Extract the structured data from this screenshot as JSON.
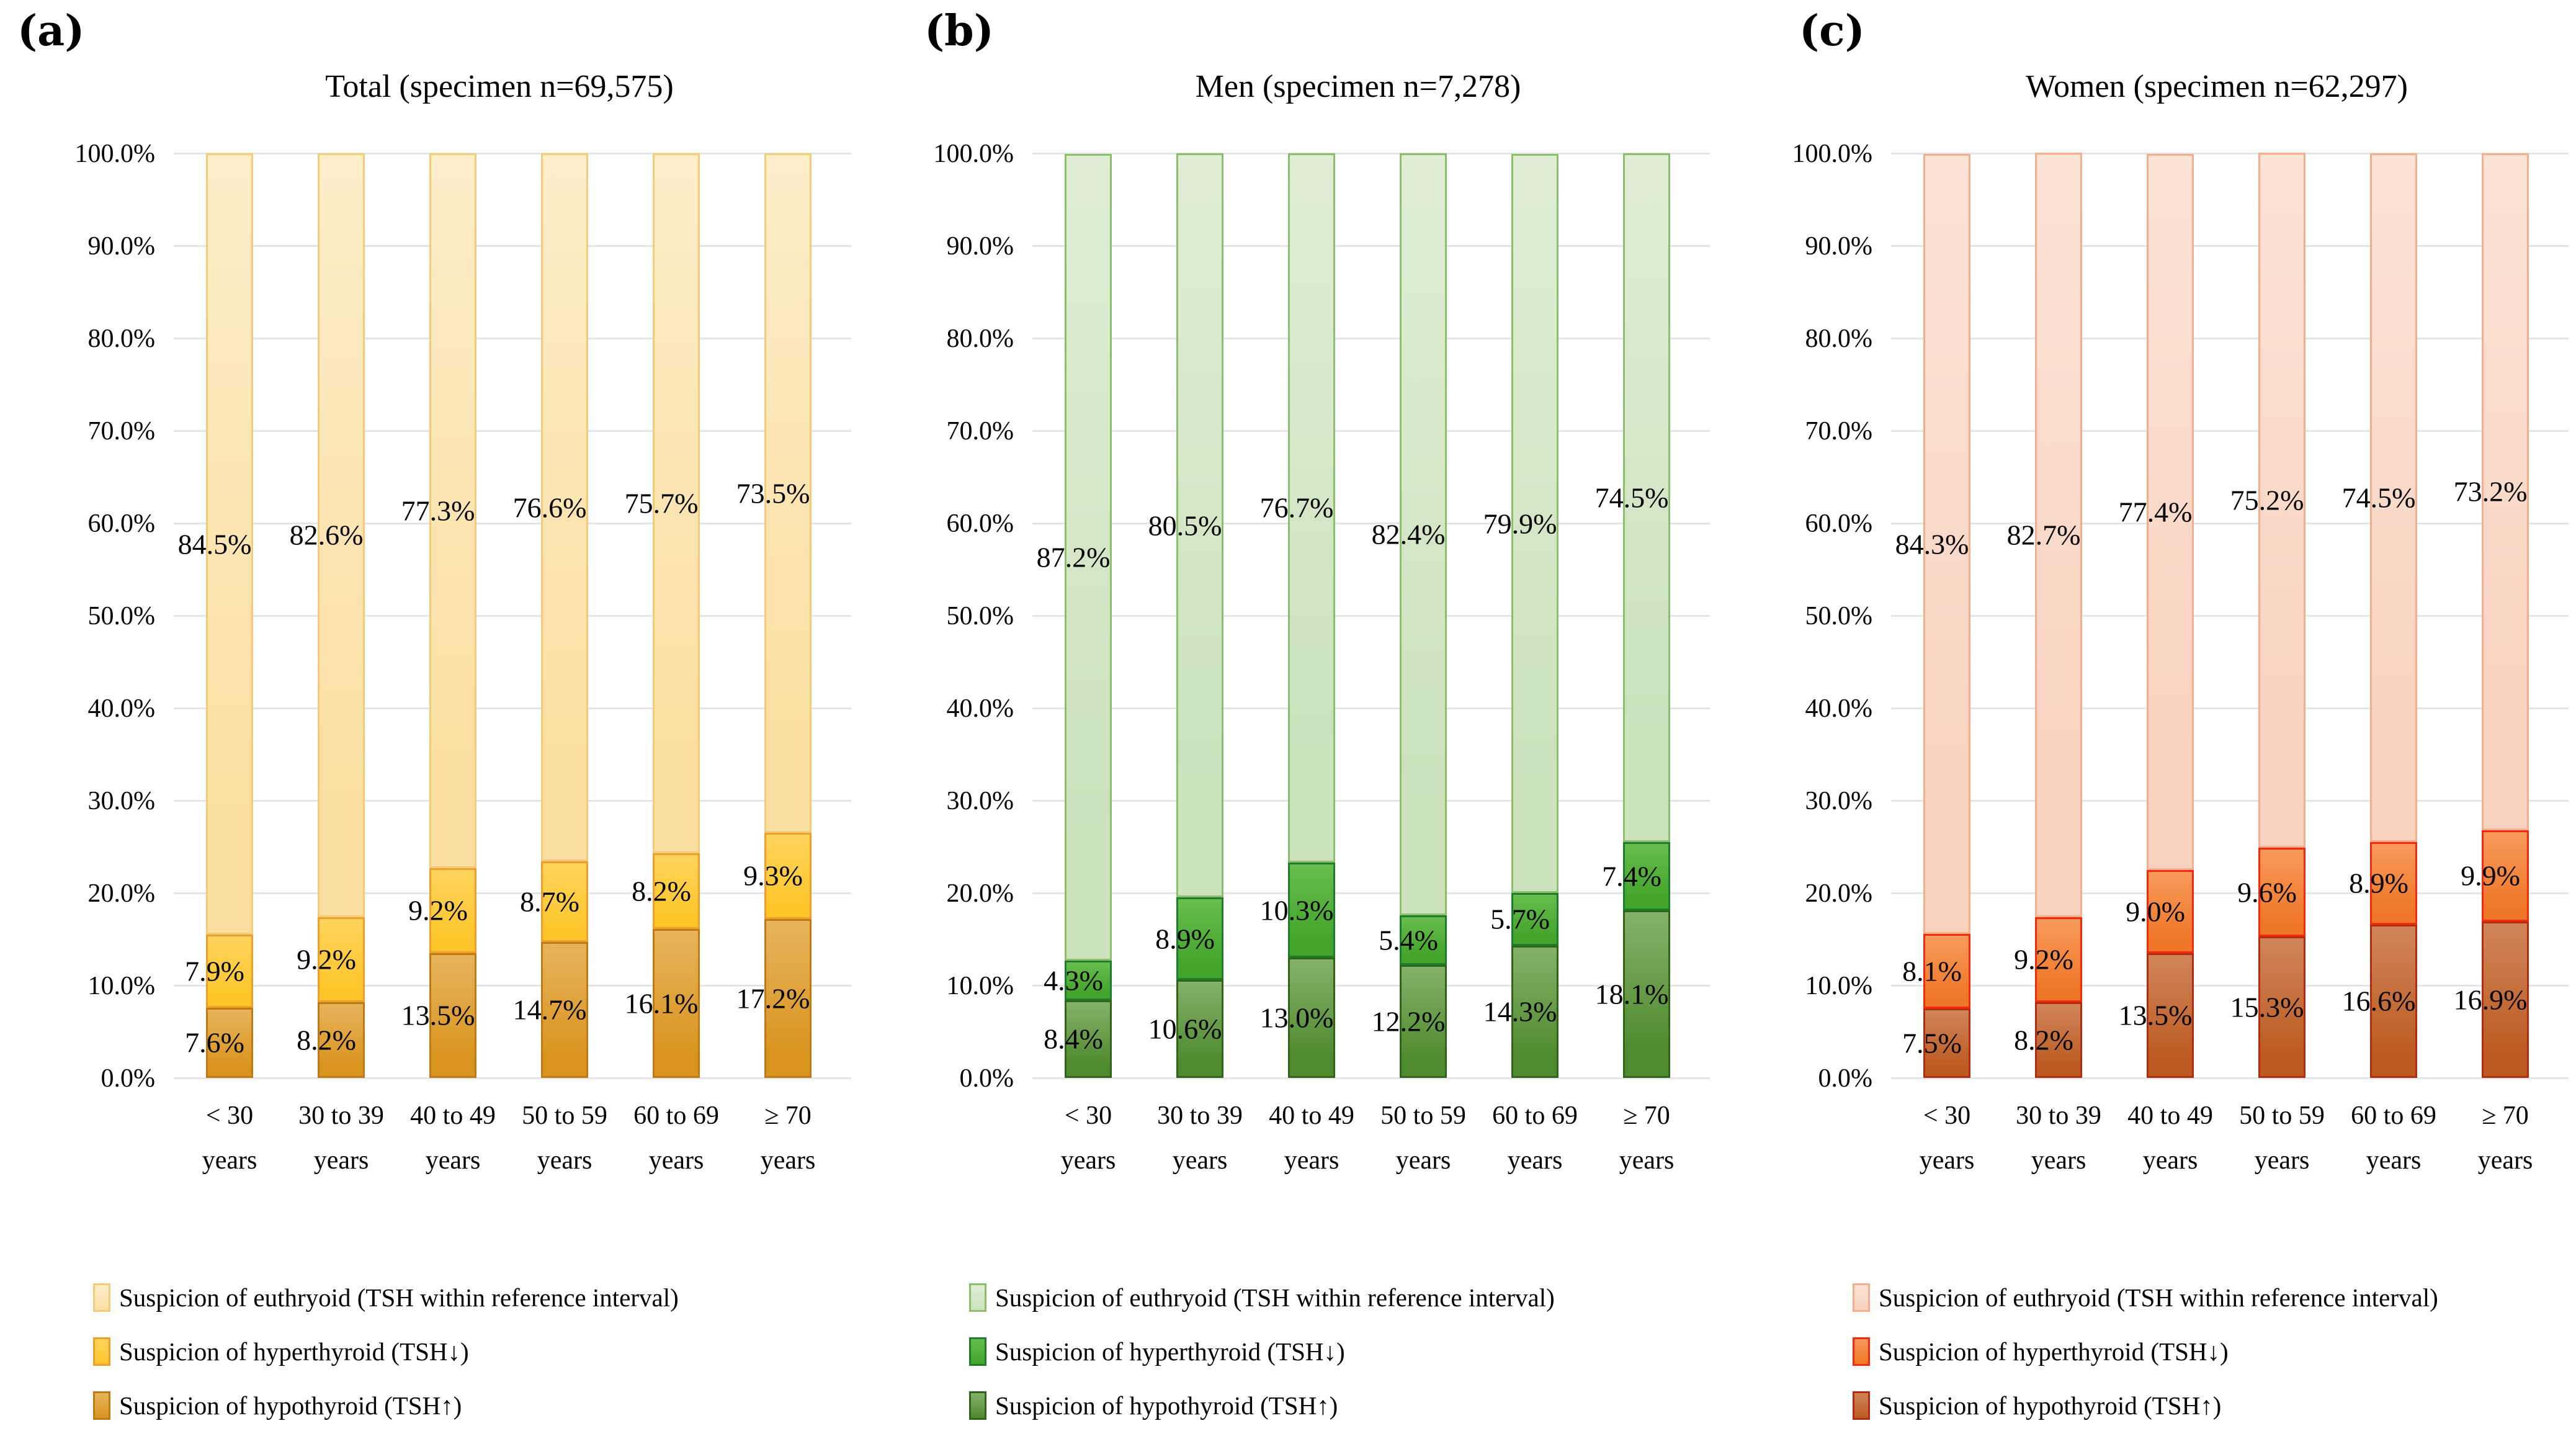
{
  "figure": {
    "background": "#FFFFFF"
  },
  "y_axis": {
    "ticks": [
      "100.0%",
      "90.0%",
      "80.0%",
      "70.0%",
      "60.0%",
      "50.0%",
      "40.0%",
      "30.0%",
      "20.0%",
      "10.0%",
      "0.0%"
    ]
  },
  "categories": [
    {
      "line1": "< 30",
      "line2": "years"
    },
    {
      "line1": "30 to 39",
      "line2": "years"
    },
    {
      "line1": "40 to 49",
      "line2": "years"
    },
    {
      "line1": "50 to 59",
      "line2": "years"
    },
    {
      "line1": "60 to 69",
      "line2": "years"
    },
    {
      "line1": "≥ 70",
      "line2": "years"
    }
  ],
  "legend": {
    "labels": [
      "Suspicion of euthryoid (TSH within reference interval)",
      "Suspicion of hyperthyroid (TSH↓)",
      "Suspicion of hypothyroid (TSH↑)"
    ]
  },
  "chart_data": [
    {
      "type": "bar",
      "variant": "100%-stacked-column",
      "panel_letter": "(a)",
      "title": "Total (specimen n=69,575)",
      "categories": [
        "< 30 years",
        "30 to 39 years",
        "40 to 49 years",
        "50 to 59 years",
        "60 to 69 years",
        "≥ 70 years"
      ],
      "series": [
        {
          "name": "Suspicion of euthryoid (TSH within reference interval)",
          "values": [
            84.5,
            82.6,
            77.3,
            76.6,
            75.7,
            73.5
          ]
        },
        {
          "name": "Suspicion of hyperthyroid (TSH↓)",
          "values": [
            7.9,
            9.2,
            9.2,
            8.7,
            8.2,
            9.3
          ]
        },
        {
          "name": "Suspicion of hypothyroid (TSH↑)",
          "values": [
            7.6,
            8.2,
            13.5,
            14.7,
            16.1,
            17.2
          ]
        }
      ],
      "labels": {
        "euthyroid": [
          "84.5%",
          "82.6%",
          "77.3%",
          "76.6%",
          "75.7%",
          "73.5%"
        ],
        "hyperthyroid": [
          "7.9%",
          "9.2%",
          "9.2%",
          "8.7%",
          "8.2%",
          "9.3%"
        ],
        "hypothyroid": [
          "7.6%",
          "8.2%",
          "13.5%",
          "14.7%",
          "16.1%",
          "17.2%"
        ]
      },
      "ylim": [
        0,
        100
      ],
      "grid": true,
      "legend_position": "bottom-left",
      "colors": {
        "euthyroid": {
          "fill_top": "#FDEDC9",
          "fill": "#FBDFA2",
          "border": "#F3CB79"
        },
        "hyperthyroid": {
          "fill_top": "#FFD45C",
          "fill": "#FEC62B",
          "border": "#EE9E2C"
        },
        "hypothyroid": {
          "fill_top": "#E7B45C",
          "fill": "#D9941F",
          "border": "#BF7B13"
        }
      }
    },
    {
      "type": "bar",
      "variant": "100%-stacked-column",
      "panel_letter": "(b)",
      "title": "Men (specimen n=7,278)",
      "categories": [
        "< 30 years",
        "30 to 39 years",
        "40 to 49 years",
        "50 to 59 years",
        "60 to 69 years",
        "≥ 70 years"
      ],
      "series": [
        {
          "name": "Suspicion of euthryoid (TSH within reference interval)",
          "values": [
            87.2,
            80.5,
            76.7,
            82.4,
            79.9,
            74.5
          ]
        },
        {
          "name": "Suspicion of hyperthyroid (TSH↓)",
          "values": [
            4.3,
            8.9,
            10.3,
            5.4,
            5.7,
            7.4
          ]
        },
        {
          "name": "Suspicion of hypothyroid (TSH↑)",
          "values": [
            8.4,
            10.6,
            13.0,
            12.2,
            14.3,
            18.1
          ]
        }
      ],
      "labels": {
        "euthyroid": [
          "87.2%",
          "80.5%",
          "76.7%",
          "82.4%",
          "79.9%",
          "74.5%"
        ],
        "hyperthyroid": [
          "4.3%",
          "8.9%",
          "10.3%",
          "5.4%",
          "5.7%",
          "7.4%"
        ],
        "hypothyroid": [
          "8.4%",
          "10.6%",
          "13.0%",
          "12.2%",
          "14.3%",
          "18.1%"
        ]
      },
      "ylim": [
        0,
        100
      ],
      "grid": true,
      "legend_position": "bottom-left",
      "colors": {
        "euthyroid": {
          "fill_top": "#DEEDD3",
          "fill": "#CCE2BD",
          "border": "#8CBF6C"
        },
        "hyperthyroid": {
          "fill_top": "#67BD4D",
          "fill": "#42A42A",
          "border": "#1E7D2C"
        },
        "hypothyroid": {
          "fill_top": "#85B169",
          "fill": "#4E8A2E",
          "border": "#2F6419"
        }
      }
    },
    {
      "type": "bar",
      "variant": "100%-stacked-column",
      "panel_letter": "(c)",
      "title": "Women (specimen n=62,297)",
      "categories": [
        "< 30 years",
        "30 to 39 years",
        "40 to 49 years",
        "50 to 59 years",
        "60 to 69 years",
        "≥ 70 years"
      ],
      "series": [
        {
          "name": "Suspicion of euthryoid (TSH within reference interval)",
          "values": [
            84.3,
            82.7,
            77.4,
            75.2,
            74.5,
            73.2
          ]
        },
        {
          "name": "Suspicion of hyperthyroid (TSH↓)",
          "values": [
            8.1,
            9.2,
            9.0,
            9.6,
            8.9,
            9.9
          ]
        },
        {
          "name": "Suspicion of hypothyroid (TSH↑)",
          "values": [
            7.5,
            8.2,
            13.5,
            15.3,
            16.6,
            16.9
          ]
        }
      ],
      "labels": {
        "euthyroid": [
          "84.3%",
          "82.7%",
          "77.4%",
          "75.2%",
          "74.5%",
          "73.2%"
        ],
        "hyperthyroid": [
          "8.1%",
          "9.2%",
          "9.0%",
          "9.6%",
          "8.9%",
          "9.9%"
        ],
        "hypothyroid": [
          "7.5%",
          "8.2%",
          "13.5%",
          "15.3%",
          "16.6%",
          "16.9%"
        ]
      },
      "ylim": [
        0,
        100
      ],
      "grid": true,
      "legend_position": "bottom-left",
      "colors": {
        "euthyroid": {
          "fill_top": "#FBE3D6",
          "fill": "#F8D2BE",
          "border": "#F3AE90"
        },
        "hyperthyroid": {
          "fill_top": "#F79A5C",
          "fill": "#EF7728",
          "border": "#F52A0C"
        },
        "hypothyroid": {
          "fill_top": "#D0855A",
          "fill": "#BC5B21",
          "border": "#B02C12"
        }
      }
    }
  ]
}
